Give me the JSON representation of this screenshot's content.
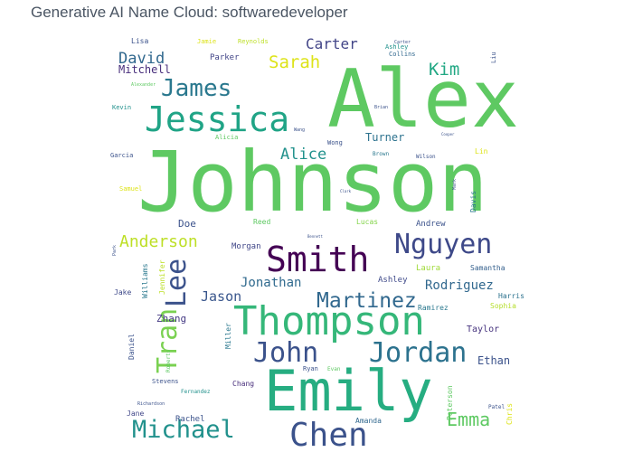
{
  "title": "Generative AI Name Cloud: softwaredeveloper",
  "chart_data": {
    "type": "wordcloud",
    "title": "Generative AI Name Cloud: softwaredeveloper",
    "colormap": "viridis",
    "words": [
      {
        "text": "Johnson",
        "weight": 100,
        "color": "#5ec962",
        "vertical": false
      },
      {
        "text": "Alex",
        "weight": 98,
        "color": "#5ec962",
        "vertical": false
      },
      {
        "text": "Emily",
        "weight": 80,
        "color": "#26ad81",
        "vertical": false
      },
      {
        "text": "Thompson",
        "weight": 48,
        "color": "#35b779",
        "vertical": false
      },
      {
        "text": "Jessica",
        "weight": 42,
        "color": "#20a486",
        "vertical": false
      },
      {
        "text": "Smith",
        "weight": 40,
        "color": "#440154",
        "vertical": false
      },
      {
        "text": "Chen",
        "weight": 38,
        "color": "#3b528b",
        "vertical": false
      },
      {
        "text": "Nguyen",
        "weight": 30,
        "color": "#3e4989",
        "vertical": false
      },
      {
        "text": "John",
        "weight": 30,
        "color": "#3b528b",
        "vertical": false
      },
      {
        "text": "Jordan",
        "weight": 29,
        "color": "#2c728e",
        "vertical": false
      },
      {
        "text": "Michael",
        "weight": 27,
        "color": "#21918c",
        "vertical": false
      },
      {
        "text": "James",
        "weight": 26,
        "color": "#2a788e",
        "vertical": false
      },
      {
        "text": "Martinez",
        "weight": 24,
        "color": "#31688e",
        "vertical": false
      },
      {
        "text": "Lee",
        "weight": 26,
        "color": "#3b528b",
        "vertical": true
      },
      {
        "text": "Tran",
        "weight": 26,
        "color": "#7ad151",
        "vertical": true
      },
      {
        "text": "Emma",
        "weight": 22,
        "color": "#5ec962",
        "vertical": false
      },
      {
        "text": "Sarah",
        "weight": 20,
        "color": "#dde318",
        "vertical": false
      },
      {
        "text": "Anderson",
        "weight": 19,
        "color": "#bddf26",
        "vertical": false
      },
      {
        "text": "Kim",
        "weight": 19,
        "color": "#22a884",
        "vertical": false
      },
      {
        "text": "Alice",
        "weight": 18,
        "color": "#21918c",
        "vertical": false
      },
      {
        "text": "David",
        "weight": 18,
        "color": "#31688e",
        "vertical": false
      },
      {
        "text": "Carter",
        "weight": 17,
        "color": "#414487",
        "vertical": false
      },
      {
        "text": "Jason",
        "weight": 17,
        "color": "#39568c",
        "vertical": false
      },
      {
        "text": "Jonathan",
        "weight": 16,
        "color": "#306a8e",
        "vertical": false
      },
      {
        "text": "Rodriguez",
        "weight": 15,
        "color": "#31688e",
        "vertical": false
      },
      {
        "text": "Ethan",
        "weight": 14,
        "color": "#3b528b",
        "vertical": false
      },
      {
        "text": "Mitchell",
        "weight": 13,
        "color": "#472d7b",
        "vertical": false
      },
      {
        "text": "Turner",
        "weight": 13,
        "color": "#2c728e",
        "vertical": false
      },
      {
        "text": "Doe",
        "weight": 12,
        "color": "#3b528b",
        "vertical": false
      },
      {
        "text": "Zhang",
        "weight": 11,
        "color": "#443983",
        "vertical": false
      },
      {
        "text": "Taylor",
        "weight": 10,
        "color": "#46337e",
        "vertical": false
      },
      {
        "text": "Morgan",
        "weight": 9,
        "color": "#404688",
        "vertical": false
      },
      {
        "text": "Laura",
        "weight": 9,
        "color": "#a0da39",
        "vertical": false
      },
      {
        "text": "Ashley",
        "weight": 9,
        "color": "#3e4989",
        "vertical": false
      },
      {
        "text": "Andrew",
        "weight": 9,
        "color": "#3b528b",
        "vertical": false
      },
      {
        "text": "Samantha",
        "weight": 8,
        "color": "#35608d",
        "vertical": false
      },
      {
        "text": "Ramirez",
        "weight": 8,
        "color": "#2a788e",
        "vertical": false
      },
      {
        "text": "Harris",
        "weight": 8,
        "color": "#2c728e",
        "vertical": false
      },
      {
        "text": "Sophia",
        "weight": 8,
        "color": "#b5de2b",
        "vertical": false
      },
      {
        "text": "Parker",
        "weight": 8,
        "color": "#414487",
        "vertical": false
      },
      {
        "text": "Lucas",
        "weight": 8,
        "color": "#84d44b",
        "vertical": false
      },
      {
        "text": "Reed",
        "weight": 8,
        "color": "#5ec962",
        "vertical": false
      },
      {
        "text": "Jane",
        "weight": 8,
        "color": "#404688",
        "vertical": false
      },
      {
        "text": "Rachel",
        "weight": 8,
        "color": "#3b528b",
        "vertical": false
      },
      {
        "text": "Amanda",
        "weight": 7,
        "color": "#31688e",
        "vertical": false
      },
      {
        "text": "Chang",
        "weight": 7,
        "color": "#472d7b",
        "vertical": false
      },
      {
        "text": "Jake",
        "weight": 7,
        "color": "#3e4989",
        "vertical": false
      },
      {
        "text": "Lisa",
        "weight": 7,
        "color": "#3b528b",
        "vertical": false
      },
      {
        "text": "Jamie",
        "weight": 7,
        "color": "#dde318",
        "vertical": false
      },
      {
        "text": "Reynolds",
        "weight": 6,
        "color": "#bddf26",
        "vertical": false
      },
      {
        "text": "Ashley",
        "weight": 6,
        "color": "#21918c",
        "vertical": false
      },
      {
        "text": "Collins",
        "weight": 6,
        "color": "#31688e",
        "vertical": false
      },
      {
        "text": "Carter",
        "weight": 5,
        "color": "#3b528b",
        "vertical": false
      },
      {
        "text": "Kevin",
        "weight": 6,
        "color": "#21918c",
        "vertical": false
      },
      {
        "text": "Alicia",
        "weight": 6,
        "color": "#5ec962",
        "vertical": false
      },
      {
        "text": "Garcia",
        "weight": 6,
        "color": "#3b528b",
        "vertical": false
      },
      {
        "text": "Samuel",
        "weight": 6,
        "color": "#dde318",
        "vertical": false
      },
      {
        "text": "Wong",
        "weight": 6,
        "color": "#3b528b",
        "vertical": false
      },
      {
        "text": "Brown",
        "weight": 5,
        "color": "#2a788e",
        "vertical": false
      },
      {
        "text": "Wilson",
        "weight": 5,
        "color": "#3b528b",
        "vertical": false
      },
      {
        "text": "Lin",
        "weight": 7,
        "color": "#dde318",
        "vertical": false
      },
      {
        "text": "Wang",
        "weight": 5,
        "color": "#3b528b",
        "vertical": false
      },
      {
        "text": "Brian",
        "weight": 5,
        "color": "#3b528b",
        "vertical": false
      },
      {
        "text": "Alexander",
        "weight": 5,
        "color": "#5ec962",
        "vertical": false
      },
      {
        "text": "Ryan",
        "weight": 6,
        "color": "#3b528b",
        "vertical": false
      },
      {
        "text": "Evan",
        "weight": 5,
        "color": "#5ec962",
        "vertical": false
      },
      {
        "text": "Stevens",
        "weight": 7,
        "color": "#3b528b",
        "vertical": false
      },
      {
        "text": "Fernandez",
        "weight": 6,
        "color": "#21918c",
        "vertical": false
      },
      {
        "text": "Richardson",
        "weight": 5,
        "color": "#3b528b",
        "vertical": false
      },
      {
        "text": "Patel",
        "weight": 6,
        "color": "#3b528b",
        "vertical": false
      },
      {
        "text": "Bennett",
        "weight": 4,
        "color": "#3b528b",
        "vertical": false
      },
      {
        "text": "Clark",
        "weight": 4,
        "color": "#3b528b",
        "vertical": false
      },
      {
        "text": "Cooper",
        "weight": 4,
        "color": "#3b528b",
        "vertical": false
      },
      {
        "text": "Davis",
        "weight": 8,
        "color": "#2a788e",
        "vertical": true
      },
      {
        "text": "Williams",
        "weight": 8,
        "color": "#2a788e",
        "vertical": true
      },
      {
        "text": "Jennifer",
        "weight": 8,
        "color": "#bddf26",
        "vertical": true
      },
      {
        "text": "Daniel",
        "weight": 8,
        "color": "#3b528b",
        "vertical": true
      },
      {
        "text": "Miller",
        "weight": 7,
        "color": "#2a788e",
        "vertical": true
      },
      {
        "text": "Roberts",
        "weight": 6,
        "color": "#5ec962",
        "vertical": true
      },
      {
        "text": "Peterson",
        "weight": 7,
        "color": "#5ec962",
        "vertical": true
      },
      {
        "text": "Chris",
        "weight": 7,
        "color": "#dde318",
        "vertical": true
      },
      {
        "text": "Liu",
        "weight": 6,
        "color": "#3b528b",
        "vertical": true
      },
      {
        "text": "Park",
        "weight": 5,
        "color": "#3b528b",
        "vertical": true
      },
      {
        "text": "Mark",
        "weight": 5,
        "color": "#3b528b",
        "vertical": true
      }
    ]
  }
}
